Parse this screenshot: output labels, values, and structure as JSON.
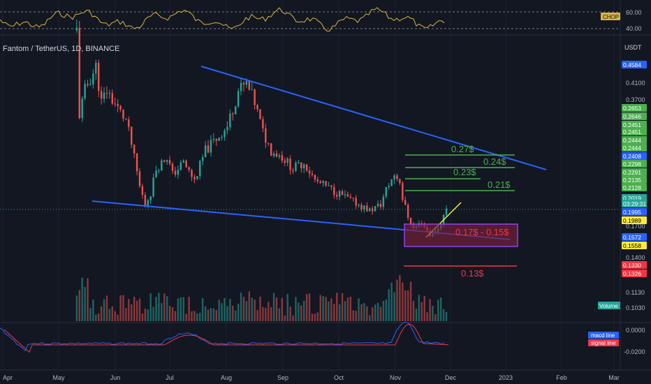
{
  "header": {
    "symbol_title": "Fantom / TetherUS, 1D, BINANCE",
    "currency": "USDT"
  },
  "colors": {
    "bg": "#131722",
    "grid": "#1e222d",
    "up": "#26a69a",
    "down": "#ef5350",
    "trend": "#2962ff",
    "green_target": "#4caf50",
    "red_target": "#f23645",
    "zone_fill": "#7b1f3a",
    "zone_border": "#8e44ec",
    "chop": "#d9b443"
  },
  "chart_data": [
    {
      "type": "line",
      "title": "CHOP",
      "ylim": [
        30,
        70
      ],
      "y_ticks": [
        "60.00",
        "40.00"
      ],
      "indicator_label": "CHOP"
    },
    {
      "type": "candlestick",
      "title": "Fantom / TetherUS, 1D, BINANCE",
      "x_ticks": [
        "Apr",
        "May",
        "Jun",
        "Jul",
        "Aug",
        "Sep",
        "Oct",
        "Nov",
        "Dec",
        "2023",
        "Feb",
        "Mar"
      ],
      "y_ticks": [
        "0.4100",
        "0.3700",
        "0.1700",
        "0.1400",
        "0.1130",
        "0.1030"
      ],
      "price_labels": [
        {
          "value": "0.4584",
          "bg": "#2962ff",
          "fg": "#ffffff"
        },
        {
          "value": "0.2653",
          "bg": "#4caf50",
          "fg": "#ffffff"
        },
        {
          "value": "0.2646",
          "bg": "#4caf50",
          "fg": "#ffffff"
        },
        {
          "value": "0.2451",
          "bg": "#4caf50",
          "fg": "#ffffff"
        },
        {
          "value": "0.2451",
          "bg": "#4caf50",
          "fg": "#ffffff"
        },
        {
          "value": "0.2444",
          "bg": "#4caf50",
          "fg": "#ffffff"
        },
        {
          "value": "0.2444",
          "bg": "#4caf50",
          "fg": "#ffffff"
        },
        {
          "value": "0.2408",
          "bg": "#2962ff",
          "fg": "#ffffff"
        },
        {
          "value": "0.2298",
          "bg": "#4caf50",
          "fg": "#ffffff"
        },
        {
          "value": "0.2291",
          "bg": "#4caf50",
          "fg": "#ffffff"
        },
        {
          "value": "0.2135",
          "bg": "#4caf50",
          "fg": "#ffffff"
        },
        {
          "value": "0.2128",
          "bg": "#4caf50",
          "fg": "#ffffff"
        },
        {
          "value": "0.2019",
          "bg": "#26a69a",
          "fg": "#ffffff"
        },
        {
          "value": "03:29:31",
          "bg": "#26a69a",
          "fg": "#ffffff"
        },
        {
          "value": "0.1995",
          "bg": "#2962ff",
          "fg": "#ffffff"
        },
        {
          "value": "0.1989",
          "bg": "#ffeb3b",
          "fg": "#000000"
        },
        {
          "value": "0.1572",
          "bg": "#2962ff",
          "fg": "#ffffff"
        },
        {
          "value": "0.1558",
          "bg": "#ffeb3b",
          "fg": "#000000"
        },
        {
          "value": "0.1330",
          "bg": "#f23645",
          "fg": "#ffffff"
        },
        {
          "value": "0.1326",
          "bg": "#f23645",
          "fg": "#ffffff"
        }
      ],
      "annotations": [
        {
          "text": "0.27$",
          "color": "#4caf50"
        },
        {
          "text": "0.24$",
          "color": "#4caf50"
        },
        {
          "text": "0.23$",
          "color": "#4caf50"
        },
        {
          "text": "0.21$",
          "color": "#4caf50"
        },
        {
          "text": "0.17$ - 0.15$",
          "color": "#f23645"
        },
        {
          "text": "0.13$",
          "color": "#f23645"
        }
      ],
      "volume_label": "Volume"
    },
    {
      "type": "line",
      "title": "MACD",
      "series": [
        {
          "name": "macd line",
          "color": "#2962ff"
        },
        {
          "name": "signal line",
          "color": "#f23645"
        }
      ],
      "y_ticks": [
        "0.0000",
        "-0.0200"
      ]
    }
  ]
}
